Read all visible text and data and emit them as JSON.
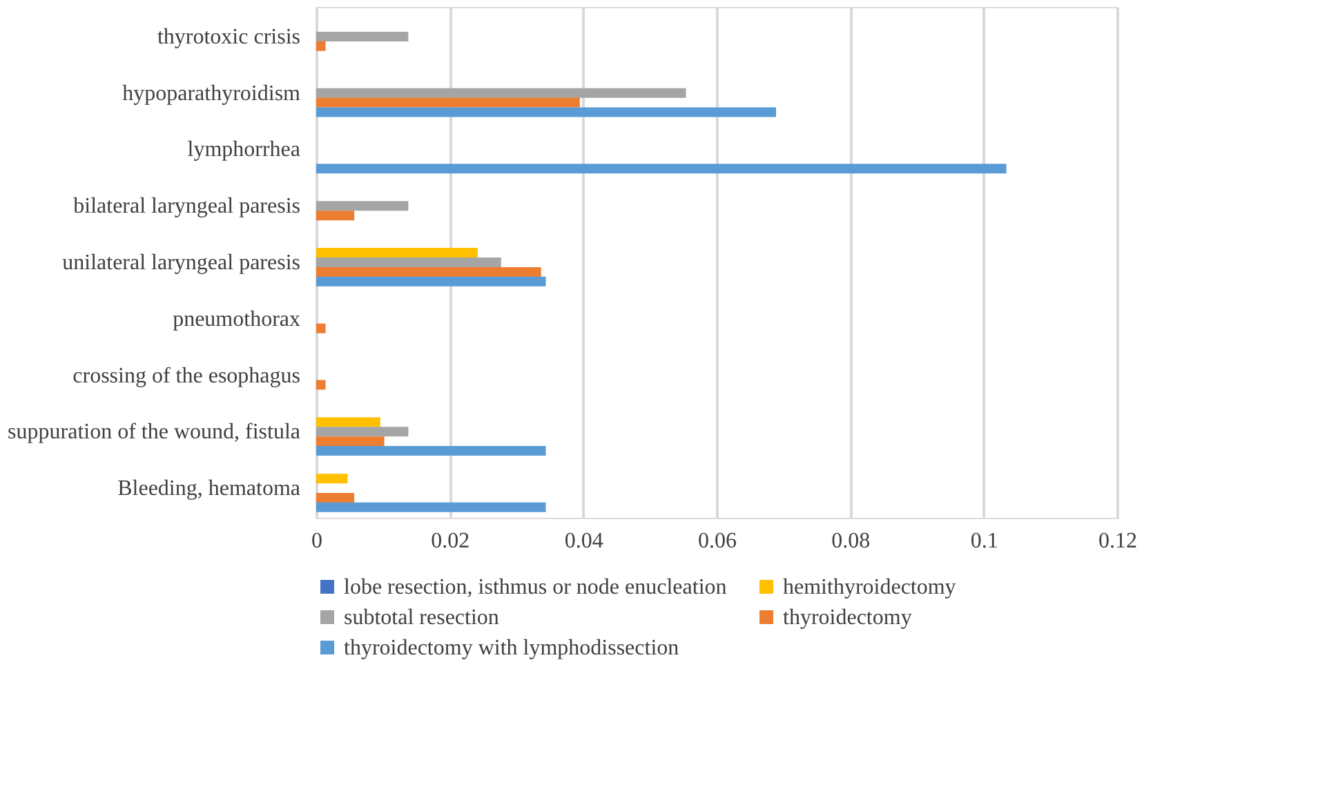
{
  "chart_data": {
    "type": "bar",
    "orientation": "horizontal",
    "categories": [
      "thyrotoxic crisis",
      "hypoparathyroidism",
      "lymphorrhea",
      "bilateral laryngeal paresis",
      "unilateral laryngeal paresis",
      "pneumothorax",
      "crossing of the esophagus",
      "suppuration of the wound, fistula",
      "Bleeding, hematoma"
    ],
    "series": [
      {
        "name": "lobe resection, isthmus or node enucleation",
        "color": "#4472c4",
        "values": [
          0,
          0,
          0,
          0,
          0,
          0,
          0,
          0,
          0
        ]
      },
      {
        "name": "hemithyroidectomy",
        "color": "#ffc000",
        "values": [
          0,
          0,
          0,
          0,
          0.0242,
          0,
          0,
          0.0096,
          0.0047
        ]
      },
      {
        "name": "subtotal resection",
        "color": "#a5a5a5",
        "values": [
          0.0138,
          0.0554,
          0,
          0.0138,
          0.0277,
          0,
          0,
          0.0138,
          0
        ]
      },
      {
        "name": "thyroidectomy",
        "color": "#ed7d31",
        "values": [
          0.0014,
          0.0395,
          0,
          0.0057,
          0.0337,
          0.0014,
          0.0014,
          0.0102,
          0.0057
        ]
      },
      {
        "name": "thyroidectomy with lymphodissection",
        "color": "#5b9bd5",
        "values": [
          0,
          0.0689,
          0.1034,
          0,
          0.0344,
          0,
          0,
          0.0344,
          0.0344
        ]
      }
    ],
    "xlim": [
      0,
      0.12
    ],
    "xticks": [
      0,
      0.02,
      0.04,
      0.06,
      0.08,
      0.1,
      0.12
    ],
    "grid": "x",
    "legend": "bottom"
  }
}
